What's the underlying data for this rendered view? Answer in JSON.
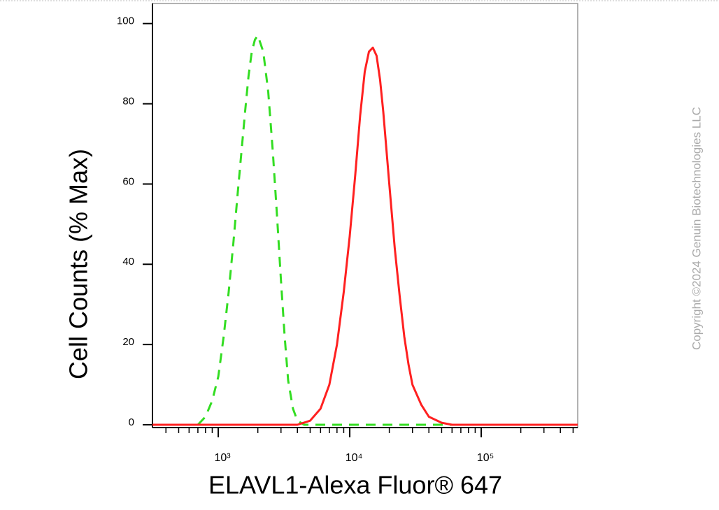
{
  "chart_data": {
    "type": "line",
    "x_label": "ELAVL1-Alexa Fluor® 647",
    "y_label": "Cell Counts (% Max)",
    "copyright": "Copyright ©2024 Genuin Biotechnologies LLC",
    "xscale": "log",
    "xlim": [
      316,
      542000
    ],
    "ylim": [
      -0.7,
      105
    ],
    "xticks": [
      {
        "value": 1000,
        "label": "10³"
      },
      {
        "value": 10000,
        "label": "10⁴"
      },
      {
        "value": 100000,
        "label": "10⁵"
      }
    ],
    "xminorticks": [
      400,
      500,
      600,
      700,
      800,
      900,
      2000,
      3000,
      4000,
      5000,
      6000,
      7000,
      8000,
      9000,
      20000,
      30000,
      40000,
      50000,
      60000,
      70000,
      80000,
      90000,
      200000,
      300000,
      400000,
      500000
    ],
    "yticks": [
      0,
      20,
      40,
      60,
      80,
      100
    ],
    "series": [
      {
        "color": "#33dd22",
        "dash": true,
        "x": [
          700,
          800,
          900,
          1000,
          1100,
          1200,
          1300,
          1400,
          1500,
          1600,
          1700,
          1800,
          1900,
          2000,
          2200,
          2400,
          2600,
          2800,
          3000,
          3200,
          3400,
          3700,
          4000,
          4500,
          10000,
          100000,
          500000
        ],
        "values": [
          0,
          2,
          6,
          12,
          22,
          33,
          45,
          57,
          68,
          78,
          87,
          93,
          96,
          97,
          93,
          83,
          68,
          52,
          36,
          22,
          11,
          4,
          1,
          0,
          0,
          0,
          0
        ]
      },
      {
        "color": "#ff2020",
        "dash": false,
        "x": [
          316,
          4000,
          5000,
          6000,
          7000,
          8000,
          9000,
          10000,
          11000,
          12000,
          13000,
          14000,
          15000,
          16000,
          17000,
          18000,
          20000,
          22000,
          24000,
          26000,
          28000,
          30000,
          35000,
          40000,
          50000,
          60000,
          542000
        ],
        "values": [
          0,
          0,
          1,
          4,
          10,
          20,
          33,
          47,
          62,
          77,
          88,
          93,
          94,
          92,
          86,
          78,
          60,
          44,
          32,
          22,
          15,
          10,
          5,
          2,
          0.5,
          0,
          0
        ]
      }
    ]
  }
}
